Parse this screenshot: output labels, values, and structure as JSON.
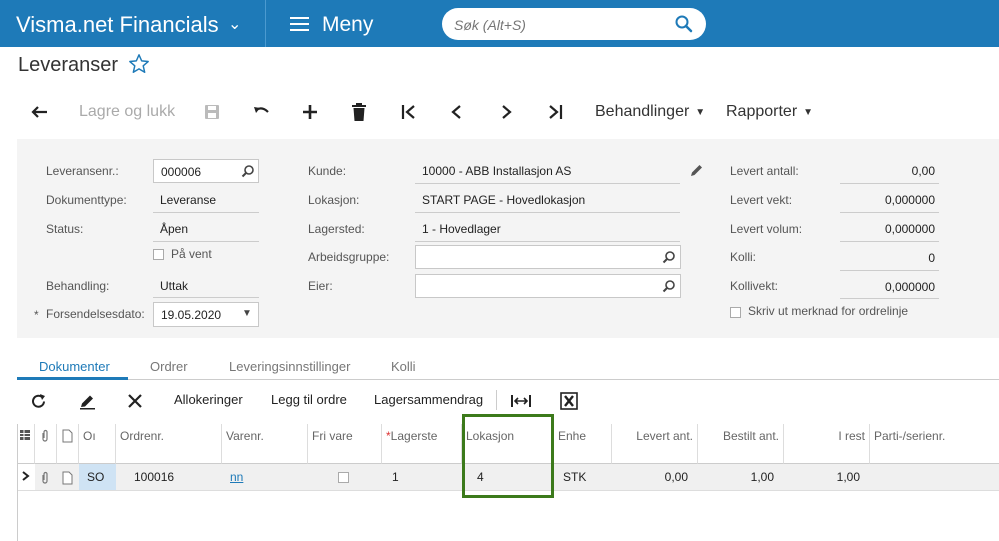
{
  "header": {
    "app_name": "Visma.net Financials",
    "menu_label": "Meny",
    "search_placeholder": "Søk (Alt+S)"
  },
  "page": {
    "title": "Leveranser"
  },
  "toolbar": {
    "save_close_label": "Lagre og lukk",
    "behandlinger_label": "Behandlinger",
    "rapporter_label": "Rapporter"
  },
  "form": {
    "col1": {
      "leveransenr_label": "Leveransenr.:",
      "leveransenr_value": "000006",
      "dokumenttype_label": "Dokumenttype:",
      "dokumenttype_value": "Leveranse",
      "status_label": "Status:",
      "status_value": "Åpen",
      "paa_vent_label": "På vent",
      "behandling_label": "Behandling:",
      "behandling_value": "Uttak",
      "forsendelsesdato_label": "Forsendelsesdato:",
      "forsendelsesdato_value": "19.05.2020",
      "required_mark": "*"
    },
    "col2": {
      "kunde_label": "Kunde:",
      "kunde_value": "10000 - ABB Installasjon AS",
      "lokasjon_label": "Lokasjon:",
      "lokasjon_value": "START PAGE - Hovedlokasjon",
      "lagersted_label": "Lagersted:",
      "lagersted_value": "1 - Hovedlager",
      "arbeidsgruppe_label": "Arbeidsgruppe:",
      "arbeidsgruppe_value": "",
      "eier_label": "Eier:",
      "eier_value": ""
    },
    "col3": {
      "levert_antall_label": "Levert antall:",
      "levert_antall_value": "0,00",
      "levert_vekt_label": "Levert vekt:",
      "levert_vekt_value": "0,000000",
      "levert_volum_label": "Levert volum:",
      "levert_volum_value": "0,000000",
      "kolli_label": "Kolli:",
      "kolli_value": "0",
      "kollivekt_label": "Kollivekt:",
      "kollivekt_value": "0,000000",
      "skriv_ut_label": "Skriv ut merknad for ordrelinje"
    }
  },
  "tabs": [
    "Dokumenter",
    "Ordrer",
    "Leveringsinnstillinger",
    "Kolli"
  ],
  "grid_toolbar": {
    "allokeringer": "Allokeringer",
    "legg_til_ordre": "Legg til ordre",
    "lagersammendrag": "Lagersammendrag"
  },
  "grid": {
    "headers": {
      "ot": "Oı",
      "ordrenr": "Ordrenr.",
      "varenr": "Varenr.",
      "fri_vare": "Fri vare",
      "lagersted_req": "*",
      "lagersted": "Lagerste",
      "lokasjon": "Lokasjon",
      "enhet": "Enhe",
      "levert_ant": "Levert ant.",
      "bestilt_ant": "Bestilt ant.",
      "i_rest": "I rest",
      "parti": "Parti-/serienr."
    },
    "row": {
      "ot": "SO",
      "ordrenr": "100016",
      "varenr": "nn",
      "lagersted": "1",
      "lokasjon": "4",
      "enhet": "STK",
      "levert_ant": "0,00",
      "bestilt_ant": "1,00",
      "i_rest": "1,00",
      "parti": ""
    }
  },
  "colors": {
    "brand": "#1e7ab8",
    "highlight": "#3c7a1b"
  }
}
